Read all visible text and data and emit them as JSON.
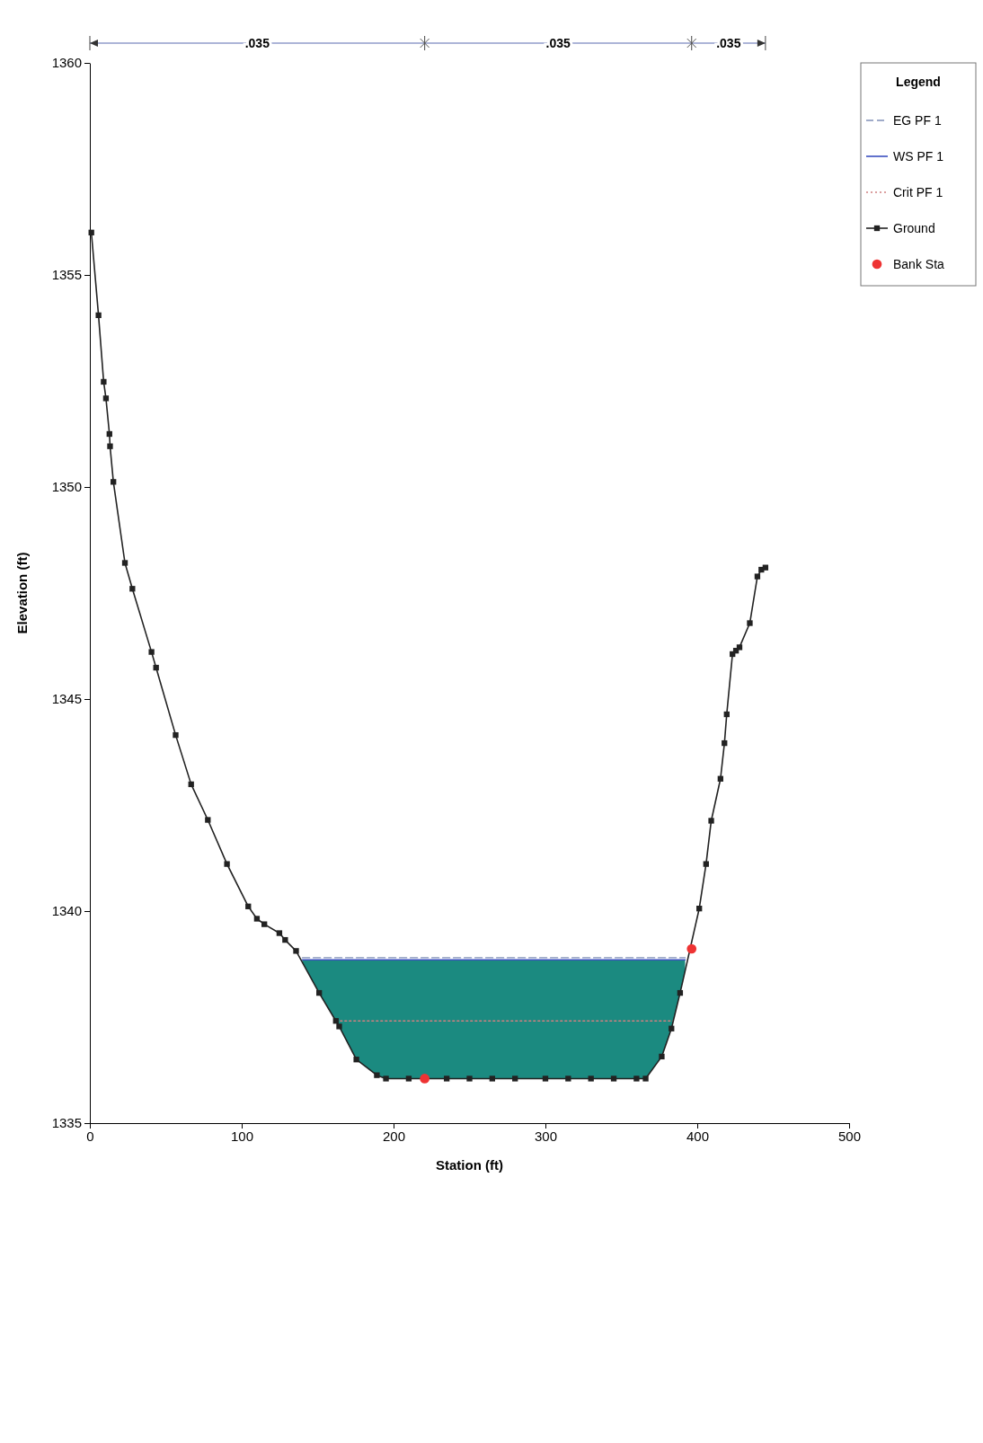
{
  "chart_data": {
    "type": "line",
    "xlabel": "Station (ft)",
    "ylabel": "Elevation (ft)",
    "legend_title": "Legend",
    "xlim": [
      0,
      500
    ],
    "xticks": [
      0,
      100,
      200,
      300,
      400,
      500
    ],
    "ylim": [
      1335,
      1360
    ],
    "yticks": [
      1335,
      1340,
      1345,
      1350,
      1355,
      1360
    ],
    "grid": false,
    "legend": "top right",
    "annotations": [
      ".035",
      ".035",
      ".035"
    ],
    "series": [
      {
        "name": "EG PF 1",
        "color": "#8090b8",
        "line_style": "dashed",
        "marker": "none",
        "x": [
          140,
          392
        ],
        "values": [
          1338.9,
          1338.9
        ]
      },
      {
        "name": "WS PF 1",
        "color": "#3b4fc0",
        "line_style": "solid",
        "marker": "none",
        "x": [
          140,
          392
        ],
        "values": [
          1338.85,
          1338.85
        ]
      },
      {
        "name": "Crit PF 1",
        "color": "#d08080",
        "line_style": "dotted",
        "marker": "none",
        "x": [
          162,
          384
        ],
        "values": [
          1337.41,
          1337.41
        ]
      },
      {
        "name": "Ground",
        "color": "#222222",
        "line_style": "solid",
        "marker": "square",
        "x": [
          1,
          5.7,
          9.1,
          10.6,
          12.9,
          13.3,
          15.5,
          23.1,
          28,
          40.6,
          43.6,
          56.5,
          66.7,
          77.7,
          90.3,
          104.3,
          110,
          114.9,
          124.8,
          128.6,
          135.8,
          151,
          162,
          164.2,
          175.5,
          189,
          195,
          210,
          220.5,
          235,
          250,
          265,
          280,
          300,
          315,
          330,
          345,
          360,
          366,
          376.6,
          383,
          388.7,
          401.3,
          405.8,
          409.2,
          415.3,
          417.9,
          419.4,
          423.2,
          425.5,
          427.8,
          434.6,
          439.6,
          442.2,
          444.9
        ],
        "values": [
          1356.0,
          1354.05,
          1352.48,
          1352.09,
          1351.25,
          1350.96,
          1350.12,
          1348.21,
          1347.6,
          1346.11,
          1345.74,
          1344.15,
          1342.99,
          1342.15,
          1341.11,
          1340.11,
          1339.82,
          1339.69,
          1339.48,
          1339.32,
          1339.06,
          1338.07,
          1337.41,
          1337.28,
          1336.5,
          1336.13,
          1336.05,
          1336.05,
          1336.05,
          1336.05,
          1336.05,
          1336.05,
          1336.05,
          1336.05,
          1336.05,
          1336.05,
          1336.05,
          1336.05,
          1336.05,
          1336.57,
          1337.23,
          1338.07,
          1340.06,
          1341.11,
          1342.13,
          1343.12,
          1343.96,
          1344.64,
          1346.06,
          1346.14,
          1346.22,
          1346.79,
          1347.89,
          1348.05,
          1348.1
        ]
      },
      {
        "name": "Bank Sta",
        "type": "scatter",
        "color": "#ee3333",
        "marker": "circle",
        "x": [
          220.5,
          396.3
        ],
        "values": [
          1336.05,
          1339.11
        ]
      }
    ]
  }
}
